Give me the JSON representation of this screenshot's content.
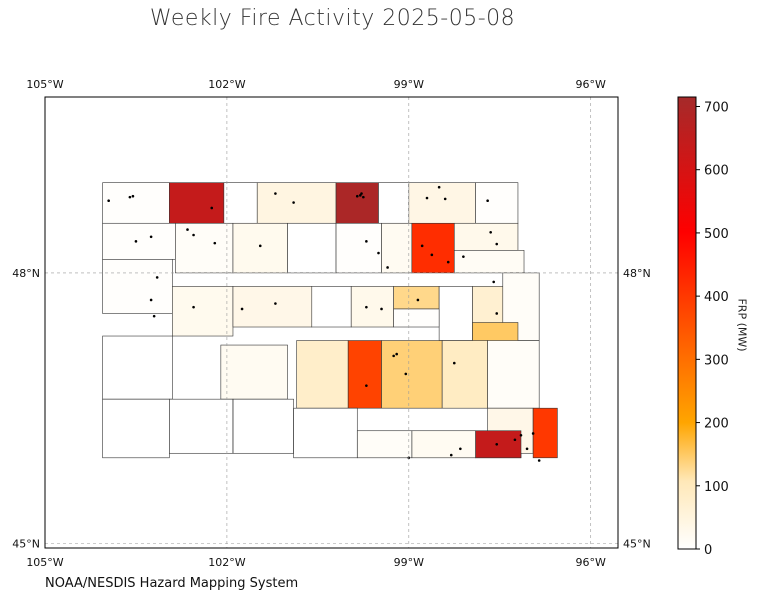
{
  "title": "Weekly Fire Activity 2025-05-08",
  "credit": "NOAA/NESDIS Hazard Mapping System",
  "colorbar": {
    "label": "FRP (MW)",
    "min": 0,
    "max": 715,
    "ticks": [
      "0",
      "100",
      "200",
      "300",
      "400",
      "500",
      "600",
      "700"
    ],
    "tick_values": [
      0,
      100,
      200,
      300,
      400,
      500,
      600,
      700
    ]
  },
  "axes": {
    "lon_ticks": [
      "105°W",
      "102°W",
      "99°W",
      "96°W"
    ],
    "lon_values": [
      -105,
      -102,
      -99,
      -96
    ],
    "lat_ticks": [
      "48°N",
      "45°N"
    ],
    "lat_values": [
      48,
      45
    ],
    "lon_range": [
      -105,
      -95.55
    ],
    "lat_range": [
      44.95,
      49.95
    ]
  },
  "chart_data": {
    "type": "heatmap",
    "title": "Weekly Fire Activity 2025-05-08",
    "value_units": "FRP (MW)",
    "colors": {
      "scale_low": "#ffffff",
      "scale_mid": "#ffa500",
      "scale_high": "#a52a2a",
      "fire_point": "#000000"
    },
    "counties": [
      {
        "lon": [
          -104.05,
          -102.95
        ],
        "lat": [
          48.55,
          49.0
        ],
        "frp": 5
      },
      {
        "lon": [
          -102.95,
          -102.05
        ],
        "lat": [
          48.55,
          49.0
        ],
        "frp": 640
      },
      {
        "lon": [
          -102.05,
          -101.5
        ],
        "lat": [
          48.55,
          49.0
        ],
        "frp": 0
      },
      {
        "lon": [
          -101.5,
          -100.2
        ],
        "lat": [
          48.55,
          49.0
        ],
        "frp": 45
      },
      {
        "lon": [
          -100.2,
          -99.5
        ],
        "lat": [
          48.55,
          49.0
        ],
        "frp": 700
      },
      {
        "lon": [
          -99.5,
          -99.0
        ],
        "lat": [
          48.55,
          49.0
        ],
        "frp": 0
      },
      {
        "lon": [
          -99.0,
          -97.9
        ],
        "lat": [
          48.55,
          49.0
        ],
        "frp": 40
      },
      {
        "lon": [
          -97.9,
          -97.2
        ],
        "lat": [
          48.55,
          49.0
        ],
        "frp": 5
      },
      {
        "lon": [
          -104.05,
          -102.85
        ],
        "lat": [
          48.15,
          48.55
        ],
        "frp": 5
      },
      {
        "lon": [
          -102.85,
          -101.9
        ],
        "lat": [
          48.0,
          48.55
        ],
        "frp": 10
      },
      {
        "lon": [
          -101.9,
          -101.0
        ],
        "lat": [
          48.0,
          48.55
        ],
        "frp": 25
      },
      {
        "lon": [
          -101.0,
          -100.2
        ],
        "lat": [
          48.0,
          48.55
        ],
        "frp": 0
      },
      {
        "lon": [
          -100.2,
          -99.45
        ],
        "lat": [
          48.0,
          48.55
        ],
        "frp": 5
      },
      {
        "lon": [
          -99.45,
          -98.95
        ],
        "lat": [
          48.0,
          48.55
        ],
        "frp": 20
      },
      {
        "lon": [
          -98.95,
          -98.25
        ],
        "lat": [
          48.0,
          48.55
        ],
        "frp": 420
      },
      {
        "lon": [
          -98.25,
          -97.2
        ],
        "lat": [
          48.25,
          48.55
        ],
        "frp": 30
      },
      {
        "lon": [
          -98.25,
          -97.1
        ],
        "lat": [
          48.0,
          48.25
        ],
        "frp": 15
      },
      {
        "lon": [
          -104.05,
          -102.9
        ],
        "lat": [
          47.55,
          48.15
        ],
        "frp": 5
      },
      {
        "lon": [
          -102.9,
          -101.9
        ],
        "lat": [
          47.3,
          47.85
        ],
        "frp": 25
      },
      {
        "lon": [
          -101.9,
          -100.6
        ],
        "lat": [
          47.4,
          47.85
        ],
        "frp": 35
      },
      {
        "lon": [
          -100.6,
          -99.95
        ],
        "lat": [
          47.4,
          47.85
        ],
        "frp": 0
      },
      {
        "lon": [
          -99.95,
          -99.25
        ],
        "lat": [
          47.4,
          47.85
        ],
        "frp": 30
      },
      {
        "lon": [
          -99.25,
          -98.5
        ],
        "lat": [
          47.6,
          47.85
        ],
        "frp": 130
      },
      {
        "lon": [
          -98.5,
          -97.95
        ],
        "lat": [
          47.25,
          47.85
        ],
        "frp": 0
      },
      {
        "lon": [
          -97.95,
          -97.45
        ],
        "lat": [
          47.25,
          47.85
        ],
        "frp": 70
      },
      {
        "lon": [
          -97.45,
          -96.85
        ],
        "lat": [
          47.25,
          48.0
        ],
        "frp": 10
      },
      {
        "lon": [
          -99.25,
          -98.5
        ],
        "lat": [
          47.4,
          47.6
        ],
        "frp": 5
      },
      {
        "lon": [
          -97.95,
          -97.2
        ],
        "lat": [
          47.0,
          47.45
        ],
        "frp": 150
      },
      {
        "lon": [
          -100.85,
          -100.0
        ],
        "lat": [
          46.5,
          47.25
        ],
        "frp": 80
      },
      {
        "lon": [
          -100.0,
          -99.45
        ],
        "lat": [
          46.5,
          47.25
        ],
        "frp": 380
      },
      {
        "lon": [
          -99.45,
          -98.45
        ],
        "lat": [
          46.5,
          47.25
        ],
        "frp": 140
      },
      {
        "lon": [
          -98.45,
          -97.7
        ],
        "lat": [
          46.5,
          47.25
        ],
        "frp": 90
      },
      {
        "lon": [
          -97.7,
          -96.85
        ],
        "lat": [
          46.5,
          47.25
        ],
        "frp": 10
      },
      {
        "lon": [
          -97.7,
          -96.95
        ],
        "lat": [
          46.0,
          46.5
        ],
        "frp": 35
      },
      {
        "lon": [
          -96.95,
          -96.55
        ],
        "lat": [
          45.95,
          46.5
        ],
        "frp": 400
      },
      {
        "lon": [
          -97.9,
          -97.15
        ],
        "lat": [
          45.95,
          46.0
        ],
        "frp": 600
      },
      {
        "lon": [
          -97.9,
          -97.15
        ],
        "lat": [
          45.95,
          46.25
        ],
        "frp": 640
      },
      {
        "lon": [
          -98.95,
          -97.9
        ],
        "lat": [
          45.95,
          46.25
        ],
        "frp": 20
      },
      {
        "lon": [
          -99.85,
          -98.95
        ],
        "lat": [
          45.95,
          46.25
        ],
        "frp": 10
      },
      {
        "lon": [
          -102.1,
          -101.0
        ],
        "lat": [
          46.6,
          47.2
        ],
        "frp": 20
      }
    ],
    "fires": [
      {
        "lon": -103.55,
        "lat": 48.85
      },
      {
        "lon": -103.6,
        "lat": 48.84
      },
      {
        "lon": -103.95,
        "lat": 48.8
      },
      {
        "lon": -102.25,
        "lat": 48.72
      },
      {
        "lon": -101.2,
        "lat": 48.88
      },
      {
        "lon": -100.9,
        "lat": 48.78
      },
      {
        "lon": -99.85,
        "lat": 48.85
      },
      {
        "lon": -99.8,
        "lat": 48.86
      },
      {
        "lon": -99.75,
        "lat": 48.84
      },
      {
        "lon": -99.78,
        "lat": 48.88
      },
      {
        "lon": -98.7,
        "lat": 48.83
      },
      {
        "lon": -98.5,
        "lat": 48.95
      },
      {
        "lon": -98.4,
        "lat": 48.82
      },
      {
        "lon": -97.7,
        "lat": 48.8
      },
      {
        "lon": -103.5,
        "lat": 48.35
      },
      {
        "lon": -103.25,
        "lat": 48.4
      },
      {
        "lon": -102.65,
        "lat": 48.48
      },
      {
        "lon": -102.55,
        "lat": 48.42
      },
      {
        "lon": -102.2,
        "lat": 48.33
      },
      {
        "lon": -101.45,
        "lat": 48.3
      },
      {
        "lon": -99.7,
        "lat": 48.35
      },
      {
        "lon": -99.5,
        "lat": 48.22
      },
      {
        "lon": -99.35,
        "lat": 48.06
      },
      {
        "lon": -98.78,
        "lat": 48.3
      },
      {
        "lon": -98.62,
        "lat": 48.2
      },
      {
        "lon": -98.35,
        "lat": 48.12
      },
      {
        "lon": -98.1,
        "lat": 48.18
      },
      {
        "lon": -97.65,
        "lat": 48.45
      },
      {
        "lon": -97.55,
        "lat": 48.32
      },
      {
        "lon": -103.15,
        "lat": 47.95
      },
      {
        "lon": -103.25,
        "lat": 47.7
      },
      {
        "lon": -103.2,
        "lat": 47.52
      },
      {
        "lon": -102.55,
        "lat": 47.62
      },
      {
        "lon": -101.75,
        "lat": 47.6
      },
      {
        "lon": -101.2,
        "lat": 47.66
      },
      {
        "lon": -99.7,
        "lat": 47.62
      },
      {
        "lon": -99.45,
        "lat": 47.6
      },
      {
        "lon": -98.85,
        "lat": 47.7
      },
      {
        "lon": -97.6,
        "lat": 47.9
      },
      {
        "lon": -97.55,
        "lat": 47.55
      },
      {
        "lon": -99.2,
        "lat": 47.1
      },
      {
        "lon": -99.25,
        "lat": 47.08
      },
      {
        "lon": -99.7,
        "lat": 46.75
      },
      {
        "lon": -99.05,
        "lat": 46.88
      },
      {
        "lon": -98.25,
        "lat": 47.0
      },
      {
        "lon": -97.15,
        "lat": 46.2
      },
      {
        "lon": -97.25,
        "lat": 46.15
      },
      {
        "lon": -97.55,
        "lat": 46.1
      },
      {
        "lon": -97.05,
        "lat": 46.05
      },
      {
        "lon": -96.95,
        "lat": 46.22
      },
      {
        "lon": -96.85,
        "lat": 45.92
      },
      {
        "lon": -98.15,
        "lat": 46.05
      },
      {
        "lon": -98.3,
        "lat": 45.98
      },
      {
        "lon": -99.0,
        "lat": 45.95
      }
    ]
  }
}
